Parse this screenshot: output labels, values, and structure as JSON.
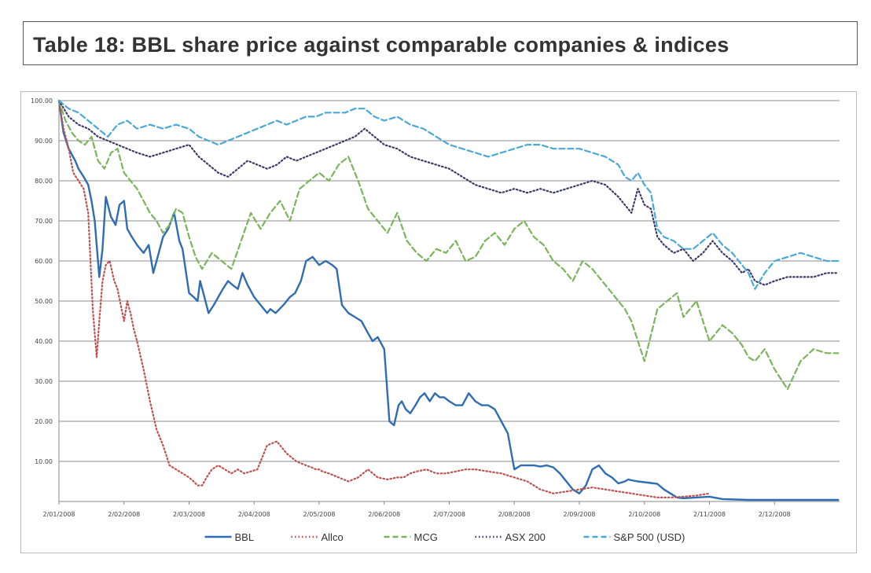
{
  "title": "Table 18: BBL share price against comparable companies & indices",
  "chart_data": {
    "type": "line",
    "xlabel": "",
    "ylabel": "",
    "ylim": [
      0,
      100
    ],
    "y_ticks": [
      "",
      "10.00",
      "20.00",
      "30.00",
      "40.00",
      "50.00",
      "60.00",
      "70.00",
      "80.00",
      "90.00",
      "100.00"
    ],
    "x_ticks": [
      "2/01/2008",
      "2/02/2008",
      "2/03/2008",
      "2/04/2008",
      "2/05/2008",
      "2/06/2008",
      "2/07/2008",
      "2/08/2008",
      "2/09/2008",
      "2/10/2008",
      "2/11/2008",
      "2/12/2008"
    ],
    "x_range_months": [
      0,
      12
    ],
    "grid": true,
    "legend_position": "bottom",
    "series": [
      {
        "name": "BBL",
        "color": "#2e6db4",
        "style": "solid",
        "x": [
          0,
          0.07,
          0.15,
          0.25,
          0.3,
          0.38,
          0.45,
          0.5,
          0.55,
          0.62,
          0.67,
          0.72,
          0.8,
          0.87,
          0.93,
          1.0,
          1.05,
          1.12,
          1.2,
          1.3,
          1.38,
          1.45,
          1.55,
          1.6,
          1.68,
          1.77,
          1.85,
          1.9,
          2.0,
          2.07,
          2.13,
          2.17,
          2.22,
          2.3,
          2.38,
          2.45,
          2.52,
          2.6,
          2.67,
          2.75,
          2.82,
          2.9,
          3.0,
          3.1,
          3.2,
          3.25,
          3.33,
          3.45,
          3.55,
          3.63,
          3.72,
          3.8,
          3.9,
          4.0,
          4.1,
          4.2,
          4.27,
          4.35,
          4.45,
          4.55,
          4.65,
          4.75,
          4.82,
          4.9,
          5.0,
          5.08,
          5.15,
          5.22,
          5.27,
          5.33,
          5.4,
          5.48,
          5.55,
          5.62,
          5.7,
          5.78,
          5.85,
          5.92,
          6.0,
          6.1,
          6.2,
          6.3,
          6.4,
          6.5,
          6.6,
          6.7,
          6.8,
          6.9,
          7.0,
          7.1,
          7.2,
          7.3,
          7.4,
          7.5,
          7.6,
          7.7,
          7.8,
          7.9,
          8.0,
          8.1,
          8.2,
          8.3,
          8.4,
          8.5,
          8.6,
          8.7,
          8.75,
          8.8,
          8.9,
          9.0,
          9.1,
          9.2,
          9.3,
          9.4,
          9.5,
          9.6,
          9.7,
          9.8,
          9.9,
          10.0,
          10.2,
          10.4,
          10.6,
          10.8,
          11.0,
          11.2,
          11.4,
          11.6,
          11.8,
          11.98
        ],
        "values": [
          100,
          92,
          88,
          85,
          83,
          81,
          79,
          75,
          70,
          56,
          63,
          76,
          71,
          69,
          74,
          75,
          68,
          66,
          64,
          62,
          64,
          57,
          63,
          66,
          68,
          72,
          65,
          63,
          52,
          51,
          50,
          55,
          52,
          47,
          49,
          51,
          53,
          55,
          54,
          53,
          57,
          54,
          51,
          49,
          47,
          48,
          47,
          49,
          51,
          52,
          55,
          60,
          61,
          59,
          60,
          59,
          58,
          49,
          47,
          46,
          45,
          42,
          40,
          41,
          38,
          20,
          19,
          24,
          25,
          23,
          22,
          24,
          26,
          27,
          25,
          27,
          26,
          26,
          25,
          24,
          24,
          27,
          25,
          24,
          24,
          23,
          20,
          17,
          8,
          9,
          9,
          9,
          8.7,
          9,
          8.5,
          7,
          5,
          3,
          2,
          4,
          8,
          9,
          7,
          6,
          4.5,
          5,
          5.5,
          5.3,
          5,
          4.8,
          4.6,
          4.4,
          3,
          2,
          1,
          0.8,
          0.9,
          1,
          1.1,
          1.2,
          0.6,
          0.5,
          0.4,
          0.4,
          0.4,
          0.4,
          0.4,
          0.4,
          0.4,
          0.4
        ]
      },
      {
        "name": "Allco",
        "color": "#c05050",
        "style": "dotted",
        "x": [
          0,
          0.07,
          0.15,
          0.22,
          0.3,
          0.38,
          0.45,
          0.52,
          0.58,
          0.62,
          0.67,
          0.72,
          0.78,
          0.85,
          0.9,
          0.95,
          1.0,
          1.05,
          1.1,
          1.15,
          1.2,
          1.3,
          1.4,
          1.5,
          1.6,
          1.7,
          1.8,
          1.9,
          2.0,
          2.07,
          2.13,
          2.2,
          2.27,
          2.35,
          2.45,
          2.55,
          2.65,
          2.75,
          2.85,
          2.95,
          3.05,
          3.2,
          3.35,
          3.5,
          3.65,
          3.8,
          3.88,
          3.95,
          4.0,
          4.05,
          4.15,
          4.3,
          4.45,
          4.6,
          4.75,
          4.9,
          5.05,
          5.2,
          5.3,
          5.35,
          5.4,
          5.5,
          5.65,
          5.8,
          5.95,
          6.1,
          6.25,
          6.4,
          6.6,
          6.8,
          7.0,
          7.2,
          7.4,
          7.6,
          7.8,
          8.0,
          8.2,
          8.4,
          8.6,
          8.8,
          9.0,
          9.2,
          9.4,
          9.6,
          9.8,
          10.0
        ],
        "values": [
          100,
          93,
          88,
          82,
          80,
          78,
          72,
          48,
          36,
          45,
          55,
          59,
          60,
          55,
          53,
          49,
          45,
          50,
          47,
          43,
          40,
          33,
          25,
          18,
          14,
          9,
          8,
          7,
          6,
          5,
          4,
          4,
          6,
          8,
          9,
          8,
          7,
          8,
          7,
          7.5,
          8,
          14,
          15,
          12,
          10,
          9,
          8.5,
          8,
          8,
          7.5,
          7,
          6,
          5,
          6,
          8,
          6,
          5.5,
          6,
          6,
          6.5,
          7,
          7.5,
          8,
          7,
          7,
          7.5,
          8,
          8,
          7.5,
          7,
          6,
          5,
          3,
          2,
          2.5,
          3,
          3.5,
          3,
          2.5,
          2,
          1.5,
          1,
          1,
          1.2,
          1.5,
          2
        ]
      },
      {
        "name": "MCG",
        "color": "#7ab55c",
        "style": "dashed",
        "x": [
          0,
          0.1,
          0.2,
          0.3,
          0.4,
          0.5,
          0.6,
          0.7,
          0.8,
          0.9,
          1.0,
          1.1,
          1.2,
          1.3,
          1.4,
          1.5,
          1.6,
          1.7,
          1.8,
          1.9,
          2.0,
          2.1,
          2.2,
          2.35,
          2.5,
          2.65,
          2.8,
          2.95,
          3.1,
          3.25,
          3.4,
          3.55,
          3.7,
          3.85,
          4.0,
          4.15,
          4.3,
          4.45,
          4.6,
          4.75,
          4.9,
          5.05,
          5.2,
          5.35,
          5.5,
          5.65,
          5.8,
          5.95,
          6.1,
          6.25,
          6.4,
          6.55,
          6.7,
          6.85,
          7.0,
          7.15,
          7.3,
          7.45,
          7.6,
          7.75,
          7.9,
          8.05,
          8.2,
          8.35,
          8.5,
          8.6,
          8.7,
          8.8,
          8.9,
          9.0,
          9.2,
          9.35,
          9.5,
          9.6,
          9.7,
          9.8,
          9.9,
          10.0,
          10.2,
          10.35,
          10.5,
          10.6,
          10.7,
          10.85,
          11.0,
          11.2,
          11.4,
          11.6,
          11.8,
          11.98
        ],
        "values": [
          100,
          95,
          92,
          90,
          89,
          91,
          85,
          83,
          87,
          88,
          82,
          80,
          78,
          75,
          72,
          70,
          67,
          69,
          73,
          72,
          66,
          61,
          58,
          62,
          60,
          58,
          65,
          72,
          68,
          72,
          75,
          70,
          78,
          80,
          82,
          80,
          84,
          86,
          80,
          73,
          70,
          67,
          72,
          65,
          62,
          60,
          63,
          62,
          65,
          60,
          61,
          65,
          67,
          64,
          68,
          70,
          66,
          64,
          60,
          58,
          55,
          60,
          58,
          55,
          52,
          50,
          48,
          45,
          40,
          35,
          48,
          50,
          52,
          46,
          48,
          50,
          45,
          40,
          44,
          42,
          39,
          36,
          35,
          38,
          33,
          28,
          35,
          38,
          37,
          37
        ]
      },
      {
        "name": "ASX 200",
        "color": "#3a3a6a",
        "style": "dotted",
        "x": [
          0,
          0.15,
          0.3,
          0.45,
          0.6,
          0.75,
          0.9,
          1.05,
          1.2,
          1.4,
          1.6,
          1.8,
          2.0,
          2.15,
          2.3,
          2.45,
          2.6,
          2.75,
          2.9,
          3.05,
          3.2,
          3.35,
          3.5,
          3.65,
          3.8,
          3.95,
          4.1,
          4.25,
          4.4,
          4.55,
          4.7,
          4.85,
          5.0,
          5.2,
          5.4,
          5.6,
          5.8,
          6.0,
          6.2,
          6.4,
          6.6,
          6.8,
          7.0,
          7.2,
          7.4,
          7.6,
          7.8,
          8.0,
          8.2,
          8.4,
          8.6,
          8.7,
          8.8,
          8.9,
          9.0,
          9.1,
          9.2,
          9.3,
          9.45,
          9.6,
          9.75,
          9.9,
          10.05,
          10.2,
          10.35,
          10.5,
          10.6,
          10.7,
          10.85,
          11.0,
          11.2,
          11.4,
          11.6,
          11.8,
          11.98
        ],
        "values": [
          100,
          96,
          94,
          93,
          91,
          90,
          89,
          88,
          87,
          86,
          87,
          88,
          89,
          86,
          84,
          82,
          81,
          83,
          85,
          84,
          83,
          84,
          86,
          85,
          86,
          87,
          88,
          89,
          90,
          91,
          93,
          91,
          89,
          88,
          86,
          85,
          84,
          83,
          81,
          79,
          78,
          77,
          78,
          77,
          78,
          77,
          78,
          79,
          80,
          79,
          76,
          74,
          72,
          78,
          74,
          73,
          66,
          64,
          62,
          63,
          60,
          62,
          65,
          62,
          60,
          57,
          58,
          55,
          54,
          55,
          56,
          56,
          56,
          57,
          57
        ]
      },
      {
        "name": "S&P 500 (USD)",
        "color": "#4aa8d8",
        "style": "dashed",
        "x": [
          0,
          0.15,
          0.3,
          0.45,
          0.6,
          0.75,
          0.9,
          1.05,
          1.2,
          1.4,
          1.6,
          1.8,
          2.0,
          2.15,
          2.3,
          2.45,
          2.6,
          2.75,
          2.9,
          3.05,
          3.2,
          3.35,
          3.5,
          3.65,
          3.8,
          3.95,
          4.1,
          4.25,
          4.4,
          4.55,
          4.7,
          4.85,
          5.0,
          5.2,
          5.4,
          5.6,
          5.8,
          6.0,
          6.2,
          6.4,
          6.6,
          6.8,
          7.0,
          7.2,
          7.4,
          7.6,
          7.8,
          8.0,
          8.2,
          8.4,
          8.6,
          8.7,
          8.8,
          8.9,
          9.0,
          9.1,
          9.2,
          9.3,
          9.45,
          9.6,
          9.75,
          9.9,
          10.05,
          10.2,
          10.35,
          10.5,
          10.6,
          10.7,
          10.85,
          11.0,
          11.2,
          11.4,
          11.6,
          11.8,
          11.98
        ],
        "values": [
          100,
          98,
          97,
          95,
          93,
          91,
          94,
          95,
          93,
          94,
          93,
          94,
          93,
          91,
          90,
          89,
          90,
          91,
          92,
          93,
          94,
          95,
          94,
          95,
          96,
          96,
          97,
          97,
          97,
          98,
          98,
          96,
          95,
          96,
          94,
          93,
          91,
          89,
          88,
          87,
          86,
          87,
          88,
          89,
          89,
          88,
          88,
          88,
          87,
          86,
          84,
          81,
          80,
          82,
          79,
          77,
          68,
          66,
          65,
          63,
          63,
          65,
          67,
          64,
          62,
          59,
          57,
          53,
          57,
          60,
          61,
          62,
          61,
          60,
          60
        ]
      }
    ]
  }
}
